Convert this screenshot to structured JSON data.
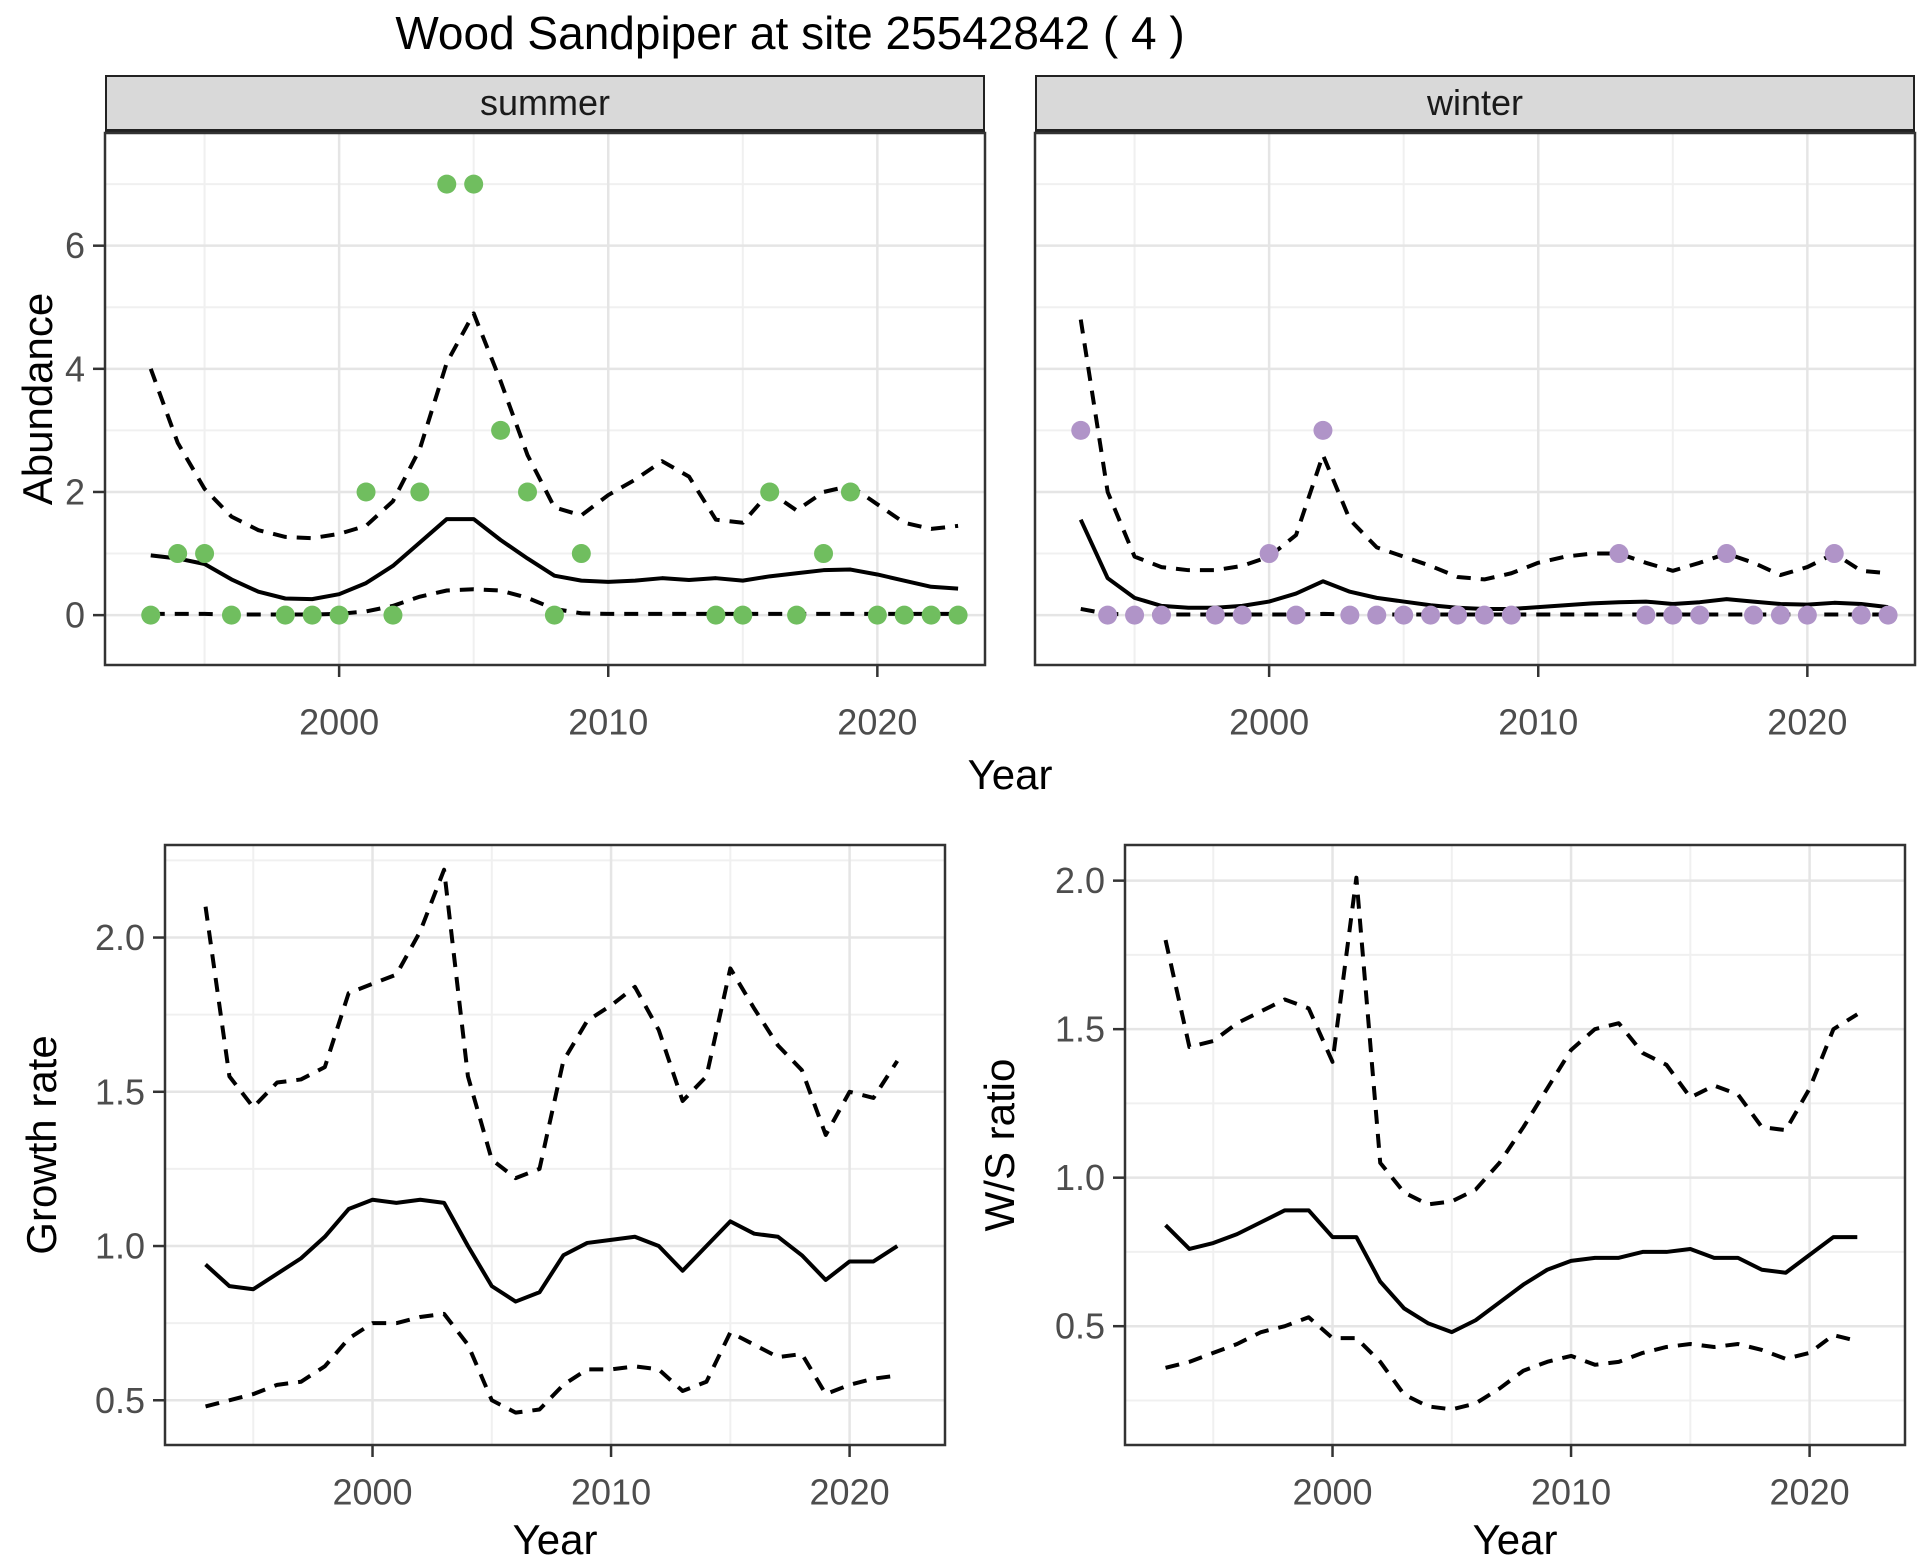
{
  "title": "Wood Sandpiper at site 25542842 ( 4 )",
  "colors": {
    "summer_point": "#70BE5F",
    "winter_point": "#B094C8",
    "line": "#000000",
    "strip_bg": "#D9D9D9",
    "panel_border": "#333333",
    "grid_major": "#E5E5E5",
    "grid_minor": "#F0F0F0",
    "tick_text": "#4D4D4D"
  },
  "chart_data": [
    {
      "id": "abundance-summer",
      "type": "scatter",
      "facet_label": "summer",
      "xlabel": "Year",
      "ylabel": "Abundance",
      "xlim": [
        1991.3,
        2024.0
      ],
      "ylim": [
        -0.81,
        7.83
      ],
      "xticks": [
        2000,
        2010,
        2020
      ],
      "xtick_labels": [
        "2000",
        "2010",
        "2020"
      ],
      "yticks": [
        0,
        2,
        4,
        6
      ],
      "ytick_labels": [
        "0",
        "2",
        "4",
        "6"
      ],
      "grid": "on",
      "point_color": "#70BE5F",
      "points": {
        "x": [
          1993,
          1994,
          1995,
          1996,
          1998,
          1999,
          2000,
          2001,
          2002,
          2003,
          2004,
          2005,
          2006,
          2007,
          2008,
          2009,
          2014,
          2015,
          2016,
          2017,
          2018,
          2019,
          2020,
          2021,
          2022,
          2023
        ],
        "y": [
          0,
          1,
          1,
          0,
          0,
          0,
          0,
          2,
          0,
          2,
          7,
          7,
          3,
          2,
          0,
          1,
          0,
          0,
          2,
          0,
          1,
          2,
          0,
          0,
          0,
          0
        ]
      },
      "line_years": [
        1993,
        1994,
        1995,
        1996,
        1997,
        1998,
        1999,
        2000,
        2001,
        2002,
        2003,
        2004,
        2005,
        2006,
        2007,
        2008,
        2009,
        2010,
        2011,
        2012,
        2013,
        2014,
        2015,
        2016,
        2017,
        2018,
        2019,
        2020,
        2021,
        2022,
        2023
      ],
      "fit": [
        0.97,
        0.92,
        0.83,
        0.58,
        0.38,
        0.27,
        0.26,
        0.34,
        0.52,
        0.8,
        1.18,
        1.56,
        1.56,
        1.22,
        0.92,
        0.64,
        0.56,
        0.54,
        0.56,
        0.6,
        0.57,
        0.6,
        0.56,
        0.63,
        0.68,
        0.73,
        0.74,
        0.66,
        0.56,
        0.46,
        0.43
      ],
      "upper": [
        4.0,
        2.8,
        2.05,
        1.6,
        1.38,
        1.27,
        1.25,
        1.32,
        1.45,
        1.85,
        2.7,
        4.1,
        4.9,
        3.8,
        2.6,
        1.75,
        1.62,
        1.95,
        2.2,
        2.5,
        2.25,
        1.55,
        1.5,
        2.0,
        1.7,
        2.0,
        2.1,
        1.8,
        1.5,
        1.4,
        1.45
      ],
      "lower": [
        0.02,
        0.02,
        0.02,
        0.01,
        0.01,
        0.01,
        0.01,
        0.02,
        0.06,
        0.15,
        0.3,
        0.4,
        0.42,
        0.4,
        0.28,
        0.1,
        0.03,
        0.02,
        0.02,
        0.02,
        0.02,
        0.02,
        0.02,
        0.02,
        0.02,
        0.02,
        0.02,
        0.02,
        0.02,
        0.02,
        0.02
      ]
    },
    {
      "id": "abundance-winter",
      "type": "scatter",
      "facet_label": "winter",
      "xlabel": "Year",
      "ylabel": "Abundance",
      "xlim": [
        1991.3,
        2024.0
      ],
      "ylim": [
        -0.81,
        7.83
      ],
      "xticks": [
        2000,
        2010,
        2020
      ],
      "xtick_labels": [
        "2000",
        "2010",
        "2020"
      ],
      "yticks": [
        0,
        2,
        4,
        6
      ],
      "ytick_labels": [
        "0",
        "2",
        "4",
        "6"
      ],
      "grid": "on",
      "point_color": "#B094C8",
      "points": {
        "x": [
          1993,
          1994,
          1995,
          1996,
          1998,
          1999,
          2000,
          2001,
          2002,
          2003,
          2004,
          2005,
          2006,
          2007,
          2008,
          2009,
          2013,
          2014,
          2015,
          2016,
          2017,
          2018,
          2019,
          2020,
          2021,
          2022,
          2023
        ],
        "y": [
          3,
          0,
          0,
          0,
          0,
          0,
          1,
          0,
          3,
          0,
          0,
          0,
          0,
          0,
          0,
          0,
          1,
          0,
          0,
          0,
          1,
          0,
          0,
          0,
          1,
          0,
          0
        ]
      },
      "line_years": [
        1993,
        1994,
        1995,
        1996,
        1997,
        1998,
        1999,
        2000,
        2001,
        2002,
        2003,
        2004,
        2005,
        2006,
        2007,
        2008,
        2009,
        2010,
        2011,
        2012,
        2013,
        2014,
        2015,
        2016,
        2017,
        2018,
        2019,
        2020,
        2021,
        2022,
        2023
      ],
      "fit": [
        1.55,
        0.6,
        0.28,
        0.15,
        0.12,
        0.12,
        0.15,
        0.22,
        0.35,
        0.55,
        0.38,
        0.28,
        0.22,
        0.16,
        0.12,
        0.1,
        0.1,
        0.13,
        0.16,
        0.19,
        0.21,
        0.22,
        0.18,
        0.21,
        0.26,
        0.22,
        0.18,
        0.17,
        0.2,
        0.18,
        0.13
      ],
      "upper": [
        4.8,
        2.0,
        0.95,
        0.78,
        0.73,
        0.73,
        0.8,
        0.95,
        1.3,
        2.6,
        1.55,
        1.1,
        0.95,
        0.8,
        0.62,
        0.58,
        0.68,
        0.85,
        0.95,
        1.0,
        1.0,
        0.85,
        0.72,
        0.85,
        1.0,
        0.85,
        0.65,
        0.78,
        1.0,
        0.72,
        0.68
      ],
      "lower": [
        0.1,
        0.02,
        0.01,
        0.01,
        0.01,
        0.01,
        0.01,
        0.01,
        0.01,
        0.02,
        0.01,
        0.01,
        0.01,
        0.01,
        0.01,
        0.01,
        0.01,
        0.01,
        0.01,
        0.01,
        0.01,
        0.01,
        0.01,
        0.01,
        0.01,
        0.01,
        0.01,
        0.01,
        0.01,
        0.01,
        0.01
      ]
    },
    {
      "id": "growth-rate",
      "type": "line",
      "facet_label": "",
      "xlabel": "Year",
      "ylabel": "Growth rate",
      "xlim": [
        1991.3,
        2024.0
      ],
      "ylim": [
        0.355,
        2.3
      ],
      "xticks": [
        2000,
        2010,
        2020
      ],
      "xtick_labels": [
        "2000",
        "2010",
        "2020"
      ],
      "yticks": [
        0.5,
        1.0,
        1.5,
        2.0
      ],
      "ytick_labels": [
        "0.5",
        "1.0",
        "1.5",
        "2.0"
      ],
      "grid": "on",
      "line_years": [
        1993,
        1994,
        1995,
        1996,
        1997,
        1998,
        1999,
        2000,
        2001,
        2002,
        2003,
        2004,
        2005,
        2006,
        2007,
        2008,
        2009,
        2010,
        2011,
        2012,
        2013,
        2014,
        2015,
        2016,
        2017,
        2018,
        2019,
        2020,
        2021,
        2022
      ],
      "fit": [
        0.94,
        0.87,
        0.86,
        0.91,
        0.96,
        1.03,
        1.12,
        1.15,
        1.14,
        1.15,
        1.14,
        1.0,
        0.87,
        0.82,
        0.85,
        0.97,
        1.01,
        1.02,
        1.03,
        1.0,
        0.92,
        1.0,
        1.08,
        1.04,
        1.03,
        0.97,
        0.89,
        0.95,
        0.95,
        1.0
      ],
      "upper": [
        2.1,
        1.55,
        1.45,
        1.53,
        1.54,
        1.58,
        1.82,
        1.85,
        1.88,
        2.02,
        2.22,
        1.55,
        1.28,
        1.22,
        1.25,
        1.6,
        1.73,
        1.78,
        1.84,
        1.7,
        1.47,
        1.55,
        1.9,
        1.77,
        1.65,
        1.57,
        1.36,
        1.5,
        1.48,
        1.6
      ],
      "lower": [
        0.48,
        0.5,
        0.52,
        0.55,
        0.56,
        0.61,
        0.7,
        0.75,
        0.75,
        0.77,
        0.78,
        0.68,
        0.5,
        0.46,
        0.47,
        0.55,
        0.6,
        0.6,
        0.61,
        0.6,
        0.53,
        0.56,
        0.72,
        0.68,
        0.64,
        0.65,
        0.52,
        0.55,
        0.57,
        0.58
      ]
    },
    {
      "id": "ws-ratio",
      "type": "line",
      "facet_label": "",
      "xlabel": "Year",
      "ylabel": "W/S ratio",
      "xlim": [
        1991.3,
        2024.0
      ],
      "ylim": [
        0.1,
        2.12
      ],
      "xticks": [
        2000,
        2010,
        2020
      ],
      "xtick_labels": [
        "2000",
        "2010",
        "2020"
      ],
      "yticks": [
        0.5,
        1.0,
        1.5,
        2.0
      ],
      "ytick_labels": [
        "0.5",
        "1.0",
        "1.5",
        "2.0"
      ],
      "grid": "on",
      "line_years": [
        1993,
        1994,
        1995,
        1996,
        1997,
        1998,
        1999,
        2000,
        2001,
        2002,
        2003,
        2004,
        2005,
        2006,
        2007,
        2008,
        2009,
        2010,
        2011,
        2012,
        2013,
        2014,
        2015,
        2016,
        2017,
        2018,
        2019,
        2020,
        2021,
        2022
      ],
      "fit": [
        0.84,
        0.76,
        0.78,
        0.81,
        0.85,
        0.89,
        0.89,
        0.8,
        0.8,
        0.65,
        0.56,
        0.51,
        0.48,
        0.52,
        0.58,
        0.64,
        0.69,
        0.72,
        0.73,
        0.73,
        0.75,
        0.75,
        0.76,
        0.73,
        0.73,
        0.69,
        0.68,
        0.74,
        0.8,
        0.8
      ],
      "upper": [
        1.8,
        1.44,
        1.46,
        1.52,
        1.56,
        1.6,
        1.57,
        1.39,
        2.01,
        1.05,
        0.95,
        0.91,
        0.92,
        0.96,
        1.05,
        1.17,
        1.3,
        1.43,
        1.5,
        1.52,
        1.42,
        1.38,
        1.27,
        1.31,
        1.28,
        1.17,
        1.16,
        1.3,
        1.5,
        1.55
      ],
      "lower": [
        0.36,
        0.38,
        0.41,
        0.44,
        0.48,
        0.5,
        0.53,
        0.46,
        0.46,
        0.38,
        0.27,
        0.23,
        0.22,
        0.24,
        0.29,
        0.35,
        0.38,
        0.4,
        0.37,
        0.38,
        0.41,
        0.43,
        0.44,
        0.43,
        0.44,
        0.42,
        0.39,
        0.41,
        0.47,
        0.45
      ]
    }
  ]
}
